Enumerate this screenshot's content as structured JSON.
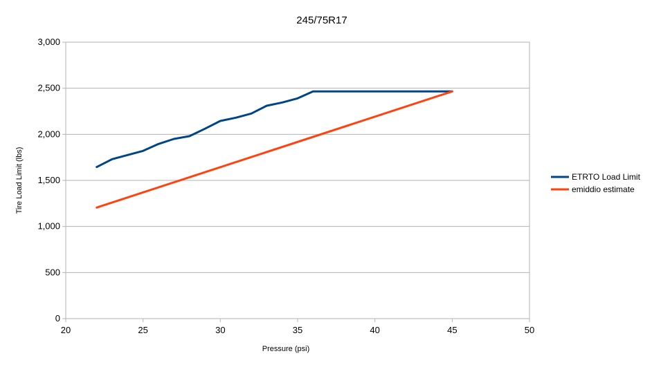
{
  "chart_data": {
    "type": "line",
    "title": "245/75R17",
    "xlabel": "Pressure (psi)",
    "ylabel": "Tire Load Limit (lbs)",
    "xlim": [
      20,
      50
    ],
    "ylim": [
      0,
      3000
    ],
    "x_ticks": [
      "20",
      "25",
      "30",
      "35",
      "40",
      "45",
      "50"
    ],
    "y_ticks": [
      "0",
      "500",
      "1,000",
      "1,500",
      "2,000",
      "2,500",
      "3,000"
    ],
    "grid": "horizontal",
    "legend_position": "right",
    "series": [
      {
        "name": "ETRTO Load Limit",
        "color": "#004586",
        "x": [
          22,
          23,
          24,
          25,
          26,
          27,
          28,
          29,
          30,
          31,
          32,
          33,
          34,
          35,
          36,
          37,
          38,
          39,
          40,
          41,
          42,
          43,
          44,
          45
        ],
        "y": [
          1645,
          1730,
          1775,
          1820,
          1895,
          1950,
          1980,
          2060,
          2145,
          2180,
          2225,
          2310,
          2345,
          2390,
          2465,
          2465,
          2465,
          2465,
          2465,
          2465,
          2465,
          2465,
          2465,
          2465
        ]
      },
      {
        "name": "emiddio estimate",
        "color": "#ff420e",
        "x": [
          22,
          45
        ],
        "y": [
          1205,
          2465
        ]
      }
    ]
  }
}
